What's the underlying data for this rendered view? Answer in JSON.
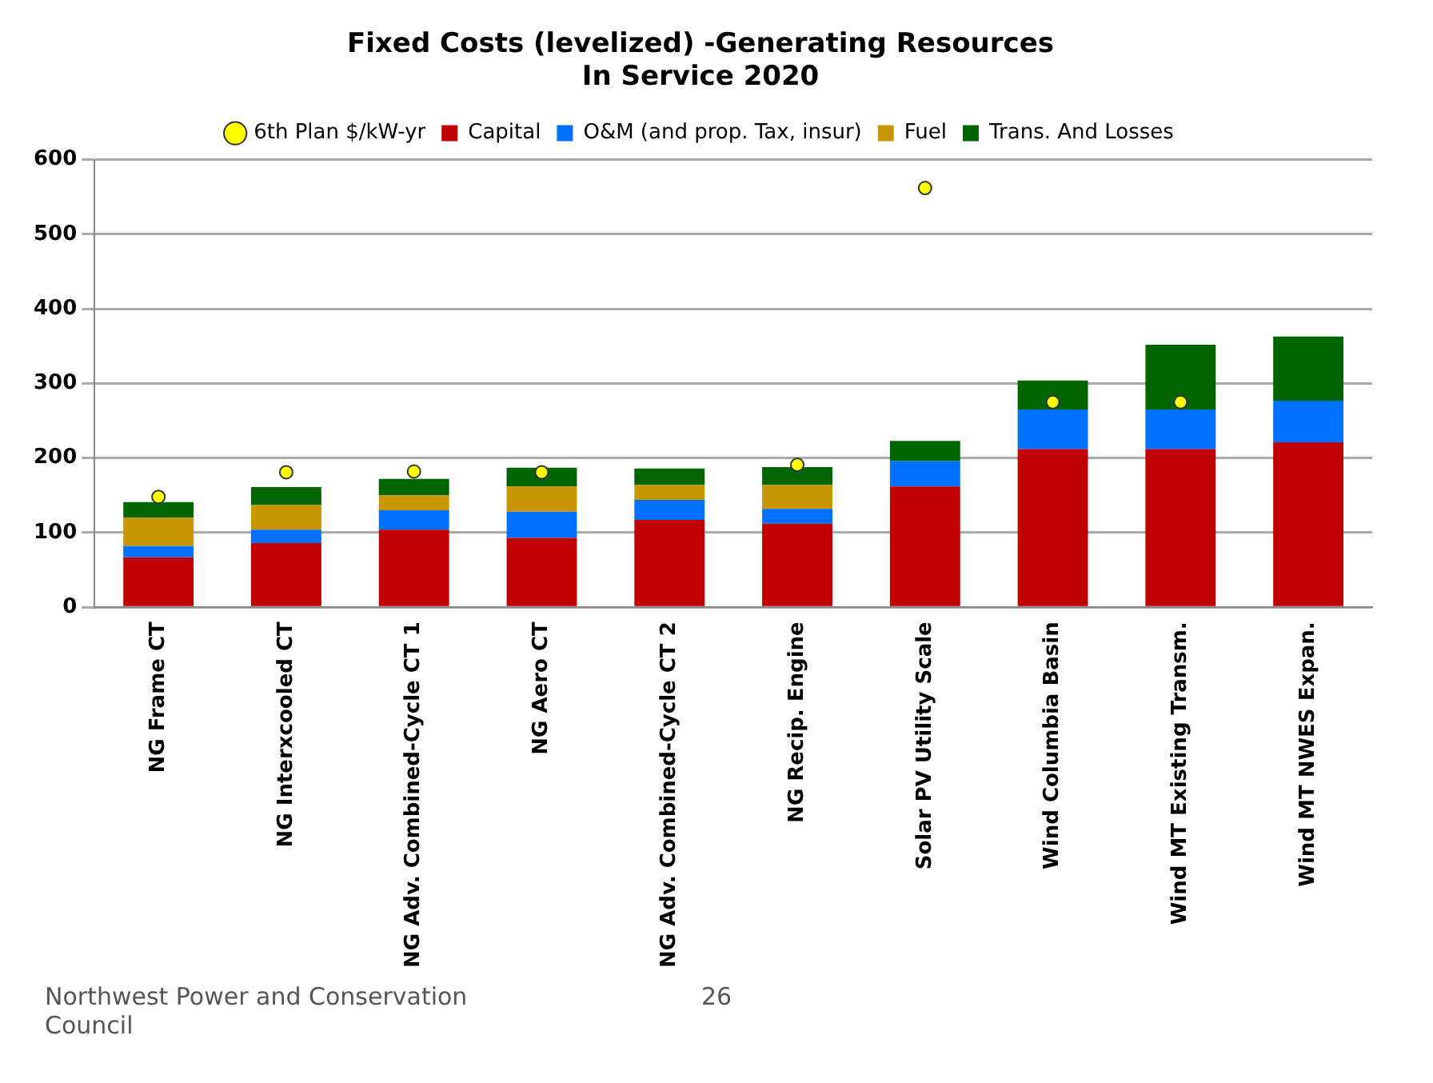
{
  "chart_data": {
    "type": "bar",
    "title": "Fixed Costs (levelized) -Generating Resources\nIn Service 2020",
    "categories": [
      "NG Frame CT",
      "NG Interxcooled CT",
      "NG Adv. Combined-Cycle CT 1",
      "NG Aero CT",
      "NG Adv. Combined-Cycle CT 2",
      "NG Recip. Engine",
      "Solar PV Utility Scale",
      "Wind Columbia Basin",
      "Wind MT Existing Transm.",
      "Wind MT NWES Expan."
    ],
    "stacked": true,
    "series": [
      {
        "name": "Capital",
        "color": "#c00000",
        "values": [
          67,
          86,
          104,
          93,
          117,
          112,
          162,
          212,
          212,
          221
        ]
      },
      {
        "name": "O&M (and prop. Tax, insur)",
        "color": "#0070ff",
        "values": [
          15,
          18,
          26,
          35,
          27,
          20,
          34,
          53,
          53,
          56
        ]
      },
      {
        "name": "Fuel",
        "color": "#c89600",
        "values": [
          38,
          33,
          20,
          34,
          20,
          32,
          null,
          null,
          null,
          null
        ]
      },
      {
        "name": "Trans. And Losses",
        "color": "#006400",
        "values": [
          21,
          24,
          22,
          25,
          22,
          24,
          27,
          39,
          87,
          86
        ]
      },
      {
        "name": "6th Plan $/kW-yr",
        "type": "scatter",
        "color": "#ffff00",
        "marker": "circle",
        "x": [
          "NG Frame CT",
          "NG Interxcooled CT",
          "NG Adv. Combined-Cycle CT 1",
          "NG Aero CT",
          "NG Recip. Engine",
          "Solar PV Utility Scale",
          "Wind Columbia Basin",
          "Wind MT Existing Transm."
        ],
        "values": [
          148,
          181,
          182,
          181,
          191,
          562,
          275,
          275
        ]
      }
    ],
    "ylim": [
      0,
      600
    ],
    "yticks": [
      0,
      100,
      200,
      300,
      400,
      500,
      600
    ],
    "grid": "y",
    "legend": "top",
    "annotations": [
      "Northwest Power and Conservation Council",
      "26"
    ]
  }
}
